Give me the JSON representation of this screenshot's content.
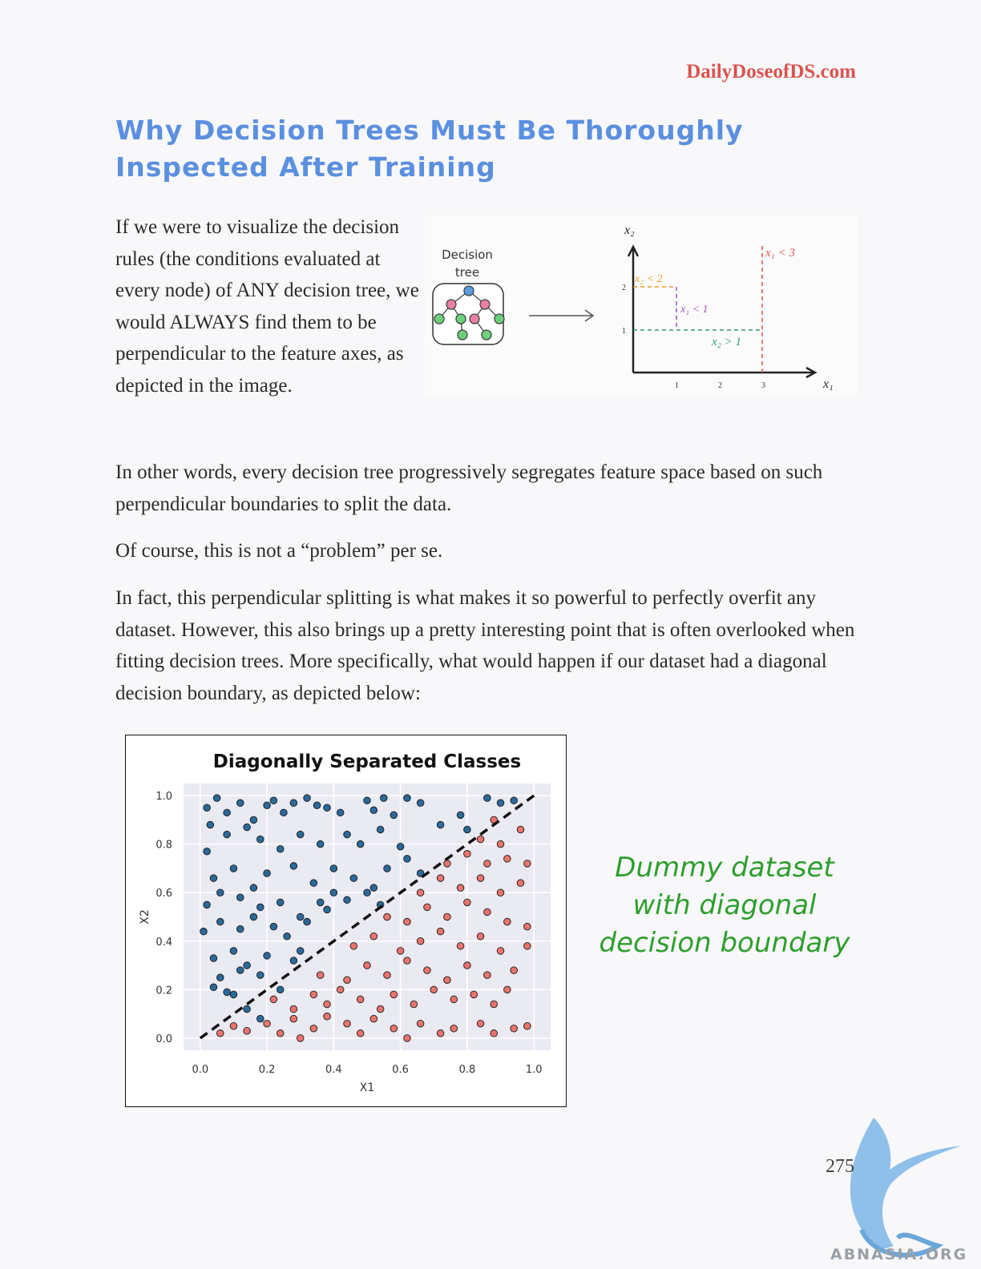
{
  "header": {
    "site": "DailyDoseofDS.com"
  },
  "title": "Why Decision Trees Must Be Thoroughly Inspected After Training",
  "intro": "If we were to visualize the decision rules (the conditions evaluated at every node) of ANY decision tree, we would ALWAYS find them to be perpendicular to the feature axes, as depicted in the image.",
  "paragraphs": [
    "In other words, every decision tree progressively segregates feature space based on such perpendicular boundaries to split the data.",
    "Of course, this is not a “problem” per se.",
    "In fact, this perpendicular splitting is what makes it so powerful to perfectly overfit any dataset. However, this also brings up a pretty interesting point that is often overlooked when fitting decision trees. More specifically, what would happen if our dataset had a diagonal decision boundary, as depicted below:"
  ],
  "tree_figure": {
    "label_line1": "Decision",
    "label_line2": "tree",
    "axis_x": "x₁",
    "axis_y": "x₂",
    "ticks_x": [
      "1",
      "2",
      "3"
    ],
    "ticks_y": [
      "1",
      "2"
    ],
    "splits": [
      {
        "label": "x₁ < 3",
        "color": "#d9534f"
      },
      {
        "label": "x₂ < 2",
        "color": "#e8a020"
      },
      {
        "label": "x₁ < 1",
        "color": "#9b4fb5"
      },
      {
        "label": "x₂ > 1",
        "color": "#2e9e6a"
      }
    ]
  },
  "chart_data": {
    "type": "scatter",
    "title": "Diagonally Separated Classes",
    "xlabel": "X1",
    "ylabel": "X2",
    "xlim": [
      -0.05,
      1.05
    ],
    "ylim": [
      -0.05,
      1.05
    ],
    "xticks": [
      "0.0",
      "0.2",
      "0.4",
      "0.6",
      "0.8",
      "1.0"
    ],
    "yticks": [
      "0.0",
      "0.2",
      "0.4",
      "0.6",
      "0.8",
      "1.0"
    ],
    "boundary": {
      "from": [
        0,
        0
      ],
      "to": [
        1,
        1
      ],
      "style": "dashed"
    },
    "grid": true,
    "series": [
      {
        "color": "#2a6a9a",
        "points": [
          [
            0.02,
            0.95
          ],
          [
            0.05,
            0.99
          ],
          [
            0.03,
            0.88
          ],
          [
            0.08,
            0.93
          ],
          [
            0.12,
            0.97
          ],
          [
            0.16,
            0.9
          ],
          [
            0.2,
            0.96
          ],
          [
            0.22,
            0.98
          ],
          [
            0.25,
            0.93
          ],
          [
            0.28,
            0.97
          ],
          [
            0.32,
            0.99
          ],
          [
            0.35,
            0.96
          ],
          [
            0.38,
            0.95
          ],
          [
            0.42,
            0.93
          ],
          [
            0.5,
            0.98
          ],
          [
            0.52,
            0.94
          ],
          [
            0.55,
            0.99
          ],
          [
            0.58,
            0.92
          ],
          [
            0.62,
            0.99
          ],
          [
            0.66,
            0.97
          ],
          [
            0.02,
            0.77
          ],
          [
            0.08,
            0.84
          ],
          [
            0.14,
            0.87
          ],
          [
            0.18,
            0.82
          ],
          [
            0.24,
            0.78
          ],
          [
            0.3,
            0.84
          ],
          [
            0.36,
            0.8
          ],
          [
            0.44,
            0.84
          ],
          [
            0.48,
            0.8
          ],
          [
            0.54,
            0.86
          ],
          [
            0.6,
            0.79
          ],
          [
            0.72,
            0.88
          ],
          [
            0.78,
            0.92
          ],
          [
            0.86,
            0.99
          ],
          [
            0.9,
            0.97
          ],
          [
            0.94,
            0.98
          ],
          [
            0.8,
            0.86
          ],
          [
            0.04,
            0.66
          ],
          [
            0.1,
            0.7
          ],
          [
            0.16,
            0.62
          ],
          [
            0.2,
            0.68
          ],
          [
            0.28,
            0.71
          ],
          [
            0.34,
            0.64
          ],
          [
            0.4,
            0.7
          ],
          [
            0.46,
            0.66
          ],
          [
            0.52,
            0.62
          ],
          [
            0.56,
            0.7
          ],
          [
            0.62,
            0.74
          ],
          [
            0.66,
            0.68
          ],
          [
            0.02,
            0.55
          ],
          [
            0.06,
            0.6
          ],
          [
            0.12,
            0.58
          ],
          [
            0.18,
            0.54
          ],
          [
            0.24,
            0.56
          ],
          [
            0.3,
            0.5
          ],
          [
            0.36,
            0.56
          ],
          [
            0.4,
            0.6
          ],
          [
            0.44,
            0.57
          ],
          [
            0.5,
            0.6
          ],
          [
            0.54,
            0.55
          ],
          [
            0.01,
            0.44
          ],
          [
            0.06,
            0.48
          ],
          [
            0.12,
            0.45
          ],
          [
            0.16,
            0.5
          ],
          [
            0.22,
            0.46
          ],
          [
            0.26,
            0.42
          ],
          [
            0.32,
            0.48
          ],
          [
            0.38,
            0.53
          ],
          [
            0.04,
            0.33
          ],
          [
            0.1,
            0.36
          ],
          [
            0.14,
            0.3
          ],
          [
            0.2,
            0.34
          ],
          [
            0.28,
            0.32
          ],
          [
            0.3,
            0.36
          ],
          [
            0.06,
            0.25
          ],
          [
            0.12,
            0.28
          ],
          [
            0.18,
            0.26
          ],
          [
            0.24,
            0.2
          ],
          [
            0.04,
            0.21
          ],
          [
            0.08,
            0.19
          ],
          [
            0.1,
            0.18
          ],
          [
            0.14,
            0.12
          ],
          [
            0.18,
            0.08
          ]
        ]
      },
      {
        "color": "#e8746c",
        "points": [
          [
            0.06,
            0.02
          ],
          [
            0.1,
            0.05
          ],
          [
            0.14,
            0.03
          ],
          [
            0.2,
            0.06
          ],
          [
            0.24,
            0.02
          ],
          [
            0.28,
            0.08
          ],
          [
            0.3,
            0.0
          ],
          [
            0.34,
            0.04
          ],
          [
            0.38,
            0.09
          ],
          [
            0.44,
            0.06
          ],
          [
            0.48,
            0.02
          ],
          [
            0.52,
            0.08
          ],
          [
            0.58,
            0.04
          ],
          [
            0.62,
            0.0
          ],
          [
            0.66,
            0.06
          ],
          [
            0.72,
            0.02
          ],
          [
            0.76,
            0.04
          ],
          [
            0.84,
            0.06
          ],
          [
            0.88,
            0.02
          ],
          [
            0.94,
            0.04
          ],
          [
            0.98,
            0.05
          ],
          [
            0.22,
            0.16
          ],
          [
            0.28,
            0.12
          ],
          [
            0.34,
            0.18
          ],
          [
            0.38,
            0.14
          ],
          [
            0.42,
            0.2
          ],
          [
            0.48,
            0.16
          ],
          [
            0.54,
            0.12
          ],
          [
            0.58,
            0.18
          ],
          [
            0.64,
            0.14
          ],
          [
            0.7,
            0.2
          ],
          [
            0.76,
            0.16
          ],
          [
            0.82,
            0.18
          ],
          [
            0.88,
            0.14
          ],
          [
            0.92,
            0.2
          ],
          [
            0.36,
            0.26
          ],
          [
            0.44,
            0.24
          ],
          [
            0.5,
            0.3
          ],
          [
            0.56,
            0.26
          ],
          [
            0.62,
            0.32
          ],
          [
            0.68,
            0.28
          ],
          [
            0.74,
            0.24
          ],
          [
            0.8,
            0.3
          ],
          [
            0.86,
            0.26
          ],
          [
            0.94,
            0.28
          ],
          [
            0.46,
            0.38
          ],
          [
            0.52,
            0.42
          ],
          [
            0.6,
            0.36
          ],
          [
            0.66,
            0.4
          ],
          [
            0.72,
            0.44
          ],
          [
            0.78,
            0.38
          ],
          [
            0.84,
            0.42
          ],
          [
            0.9,
            0.36
          ],
          [
            0.98,
            0.38
          ],
          [
            0.56,
            0.5
          ],
          [
            0.62,
            0.48
          ],
          [
            0.68,
            0.54
          ],
          [
            0.74,
            0.5
          ],
          [
            0.8,
            0.56
          ],
          [
            0.86,
            0.52
          ],
          [
            0.92,
            0.48
          ],
          [
            0.98,
            0.46
          ],
          [
            0.66,
            0.6
          ],
          [
            0.72,
            0.66
          ],
          [
            0.78,
            0.62
          ],
          [
            0.84,
            0.66
          ],
          [
            0.9,
            0.6
          ],
          [
            0.96,
            0.64
          ],
          [
            0.74,
            0.72
          ],
          [
            0.8,
            0.76
          ],
          [
            0.86,
            0.72
          ],
          [
            0.92,
            0.74
          ],
          [
            0.98,
            0.72
          ],
          [
            0.84,
            0.82
          ],
          [
            0.9,
            0.8
          ],
          [
            0.96,
            0.86
          ],
          [
            0.88,
            0.9
          ]
        ]
      }
    ]
  },
  "note": [
    "Dummy dataset",
    "with diagonal",
    "decision boundary"
  ],
  "footer": {
    "page_number": "275",
    "watermark": "ABNASIA.ORG"
  }
}
